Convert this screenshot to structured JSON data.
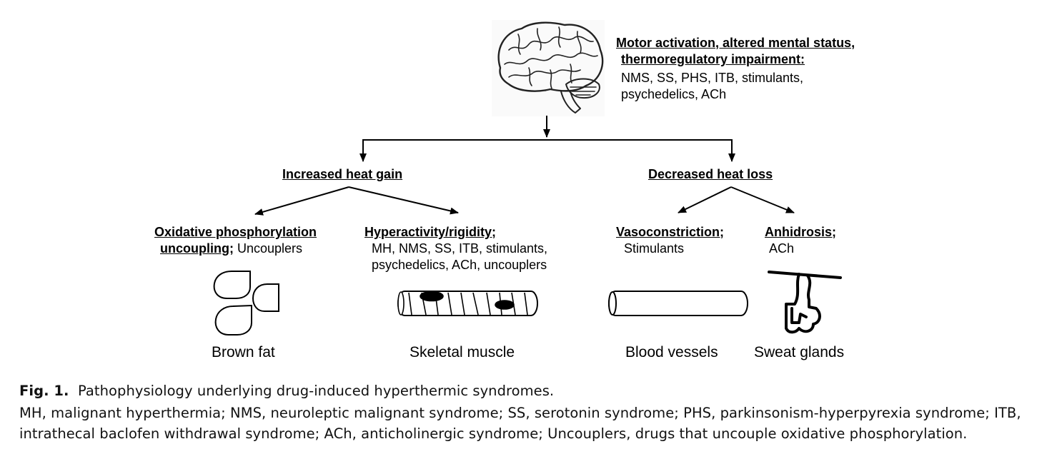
{
  "brain": {
    "heading_line1": "Motor activation, altered mental status,",
    "heading_line2": "thermoregulatory impairment:",
    "body_line1": "NMS, SS, PHS, ITB, stimulants,",
    "body_line2": "psychedelics, ACh"
  },
  "branches": {
    "gain": "Increased heat gain",
    "loss": "Decreased heat loss"
  },
  "mechanisms": {
    "oxphos_line1": "Oxidative phosphorylation",
    "oxphos_line2_bold": "uncoupling;",
    "oxphos_line2_rest": " Uncouplers",
    "hyper_title": "Hyperactivity/rigidity;",
    "hyper_line1": "MH, NMS, SS, ITB, stimulants,",
    "hyper_line2": "psychedelics, ACh, uncouplers",
    "vaso_title": "Vasoconstriction;",
    "vaso_body": "Stimulants",
    "anhid_title": "Anhidrosis;",
    "anhid_body": "ACh"
  },
  "tissues": {
    "brown_fat": "Brown fat",
    "skeletal_muscle": "Skeletal muscle",
    "blood_vessels": "Blood vessels",
    "sweat_glands": "Sweat glands"
  },
  "caption": {
    "fig_label": "Fig. 1.",
    "title": "Pathophysiology underlying drug-induced hyperthermic syndromes.",
    "line2": "MH, malignant hyperthermia; NMS, neuroleptic malignant syndrome; SS, serotonin syndrome; PHS, parkinsonism-hyperpyrexia syndrome; ITB,",
    "line3": "intrathecal baclofen withdrawal syndrome; ACh, anticholinergic syndrome; Uncouplers, drugs that uncouple oxidative phosphorylation."
  },
  "icons": [
    "brain-icon",
    "brown-fat-icon",
    "skeletal-muscle-icon",
    "blood-vessel-icon",
    "sweat-gland-icon"
  ]
}
